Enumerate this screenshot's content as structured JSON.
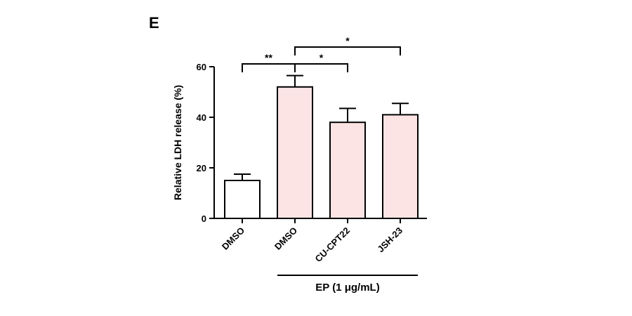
{
  "panel_label": "E",
  "chart_data": {
    "type": "bar",
    "categories": [
      "DMSO",
      "DMSO",
      "CU-CPT22",
      "JSH-23"
    ],
    "values": [
      15,
      52,
      38,
      41
    ],
    "errors": [
      2.5,
      4.5,
      5.5,
      4.5
    ],
    "bar_colors": [
      "#ffffff",
      "#fde4e4",
      "#fde4e4",
      "#fde4e4"
    ],
    "bar_stroke": "#000000",
    "xlabel": "",
    "ylabel": "Relative LDH release (%)",
    "ylim": [
      0,
      60
    ],
    "yticks": [
      0,
      20,
      40,
      60
    ],
    "grid": false,
    "group_label": "EP (1 μg/mL)",
    "group_span": [
      1,
      3
    ],
    "significance": [
      {
        "from": 0,
        "to": 1,
        "label": "**"
      },
      {
        "from": 1,
        "to": 2,
        "label": "*"
      },
      {
        "from": 1,
        "to": 3,
        "label": "*"
      }
    ]
  }
}
